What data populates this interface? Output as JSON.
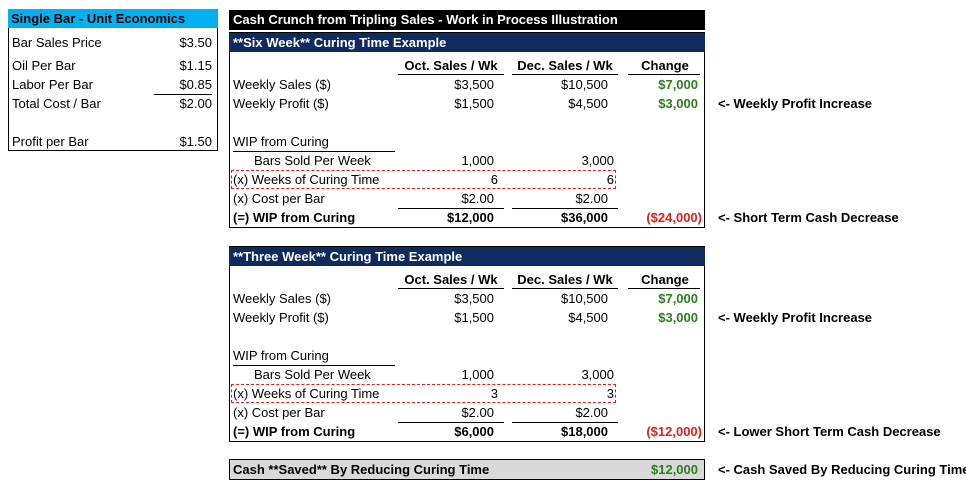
{
  "unit": {
    "title": "Single Bar - Unit Economics",
    "rows": [
      {
        "label": "Bar Sales Price",
        "value": "$3.50"
      },
      {
        "label": "Oil Per Bar",
        "value": "$1.15"
      },
      {
        "label": "Labor Per Bar",
        "value": "$0.85"
      },
      {
        "label": "Total Cost / Bar",
        "value": "$2.00"
      },
      {
        "label": "Profit per Bar",
        "value": "$1.50"
      }
    ]
  },
  "main_title": "Cash Crunch from Tripling Sales - Work in Process Illustration",
  "columns": {
    "oct": "Oct. Sales / Wk",
    "dec": "Dec. Sales / Wk",
    "change": "Change"
  },
  "six": {
    "title": "**Six Week** Curing Time Example",
    "sales": {
      "label": "Weekly Sales ($)",
      "oct": "$3,500",
      "dec": "$10,500",
      "change": "$7,000"
    },
    "profit": {
      "label": "Weekly Profit ($)",
      "oct": "$1,500",
      "dec": "$4,500",
      "change": "$3,000",
      "note": "<- Weekly Profit Increase"
    },
    "wip_header": "WIP from Curing",
    "bars": {
      "label": "Bars Sold Per Week",
      "oct": "1,000",
      "dec": "3,000"
    },
    "weeks": {
      "label": "(x) Weeks of Curing Time",
      "oct": "6",
      "dec": "6"
    },
    "cost": {
      "label": "(x) Cost per Bar",
      "oct": "$2.00",
      "dec": "$2.00"
    },
    "wip": {
      "label": "(=) WIP from Curing",
      "oct": "$12,000",
      "dec": "$36,000",
      "change": "($24,000)",
      "note": "<- Short Term Cash Decrease"
    }
  },
  "three": {
    "title": "**Three Week** Curing Time Example",
    "sales": {
      "label": "Weekly Sales ($)",
      "oct": "$3,500",
      "dec": "$10,500",
      "change": "$7,000"
    },
    "profit": {
      "label": "Weekly Profit ($)",
      "oct": "$1,500",
      "dec": "$4,500",
      "change": "$3,000",
      "note": "<- Weekly Profit Increase"
    },
    "wip_header": "WIP from Curing",
    "bars": {
      "label": "Bars Sold Per Week",
      "oct": "1,000",
      "dec": "3,000"
    },
    "weeks": {
      "label": "(x) Weeks of Curing Time",
      "oct": "3",
      "dec": "3"
    },
    "cost": {
      "label": "(x) Cost per Bar",
      "oct": "$2.00",
      "dec": "$2.00"
    },
    "wip": {
      "label": "(=) WIP from Curing",
      "oct": "$6,000",
      "dec": "$18,000",
      "change": "($12,000)",
      "note": "<- Lower Short Term Cash Decrease"
    }
  },
  "saved": {
    "label": "Cash **Saved** By Reducing Curing Time",
    "value": "$12,000",
    "note": "<- Cash Saved By Reducing Curing Time"
  },
  "colors": {
    "unit_header": "#00b0f0",
    "section_header": "#0f2a5e",
    "positive": "#2e7d1f",
    "negative": "#e0201a",
    "saved_fill": "#d9d9d9"
  }
}
